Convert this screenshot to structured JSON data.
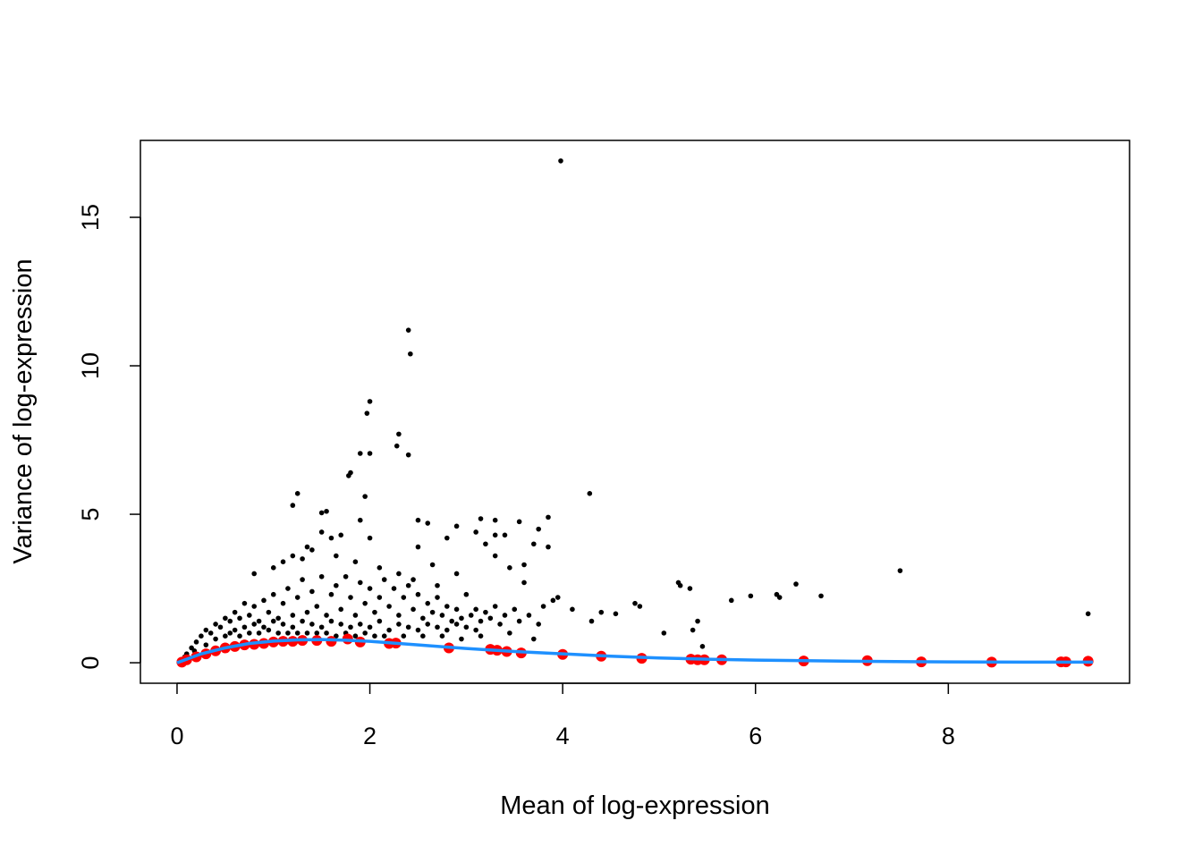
{
  "chart_data": {
    "type": "scatter",
    "title": "",
    "xlabel": "Mean of log-expression",
    "ylabel": "Variance of log-expression",
    "xlim": [
      -0.38,
      9.88
    ],
    "ylim": [
      -0.69,
      17.59
    ],
    "xticks": [
      0,
      2,
      4,
      6,
      8
    ],
    "yticks": [
      0,
      5,
      10,
      15
    ],
    "grid": false,
    "legend": "none",
    "colors": {
      "genes": "#000000",
      "spikes": "#ff0000",
      "trend": "#1e90ff"
    },
    "series": [
      {
        "role": "genes",
        "points": [
          [
            3.98,
            16.9
          ],
          [
            2.4,
            11.2
          ],
          [
            2.42,
            10.4
          ],
          [
            2.0,
            8.8
          ],
          [
            1.97,
            8.4
          ],
          [
            2.3,
            7.7
          ],
          [
            2.28,
            7.3
          ],
          [
            2.4,
            7.0
          ],
          [
            1.9,
            7.05
          ],
          [
            2.0,
            7.05
          ],
          [
            1.8,
            6.4
          ],
          [
            1.78,
            6.3
          ],
          [
            1.25,
            5.7
          ],
          [
            1.95,
            5.6
          ],
          [
            1.2,
            5.3
          ],
          [
            1.55,
            5.1
          ],
          [
            1.5,
            5.05
          ],
          [
            1.9,
            4.8
          ],
          [
            4.28,
            5.7
          ],
          [
            2.5,
            4.8
          ],
          [
            2.6,
            4.7
          ],
          [
            3.15,
            4.85
          ],
          [
            3.3,
            4.8
          ],
          [
            3.55,
            4.75
          ],
          [
            3.85,
            4.9
          ],
          [
            3.75,
            4.5
          ],
          [
            3.1,
            4.4
          ],
          [
            3.3,
            4.3
          ],
          [
            3.4,
            4.3
          ],
          [
            2.5,
            3.9
          ],
          [
            2.65,
            3.3
          ],
          [
            4.75,
            2.0
          ],
          [
            4.8,
            1.9
          ],
          [
            5.2,
            2.7
          ],
          [
            5.22,
            2.6
          ],
          [
            5.32,
            2.5
          ],
          [
            5.75,
            2.1
          ],
          [
            5.95,
            2.25
          ],
          [
            6.22,
            2.3
          ],
          [
            6.25,
            2.2
          ],
          [
            6.42,
            2.65
          ],
          [
            6.68,
            2.25
          ],
          [
            7.5,
            3.1
          ],
          [
            9.45,
            1.65
          ],
          [
            5.4,
            1.4
          ],
          [
            5.35,
            1.1
          ],
          [
            5.45,
            0.55
          ],
          [
            5.05,
            1.0
          ],
          [
            4.4,
            1.7
          ],
          [
            4.55,
            1.65
          ],
          [
            4.3,
            1.4
          ],
          [
            4.1,
            1.8
          ],
          [
            3.95,
            2.2
          ],
          [
            3.6,
            2.7
          ],
          [
            3.6,
            3.3
          ],
          [
            3.7,
            4.0
          ],
          [
            3.85,
            3.9
          ],
          [
            3.45,
            3.2
          ],
          [
            3.3,
            3.6
          ],
          [
            3.2,
            4.0
          ],
          [
            2.9,
            4.6
          ],
          [
            2.8,
            4.2
          ],
          [
            2.9,
            3.0
          ],
          [
            2.7,
            2.6
          ],
          [
            2.0,
            4.2
          ],
          [
            1.5,
            4.4
          ],
          [
            1.6,
            4.2
          ],
          [
            1.7,
            4.3
          ],
          [
            1.4,
            3.8
          ],
          [
            1.3,
            3.5
          ],
          [
            1.2,
            3.6
          ],
          [
            1.0,
            3.2
          ],
          [
            0.8,
            3.0
          ],
          [
            1.1,
            3.4
          ],
          [
            1.35,
            3.9
          ],
          [
            1.65,
            3.6
          ],
          [
            1.85,
            3.4
          ],
          [
            2.1,
            3.2
          ],
          [
            2.3,
            3.0
          ],
          [
            2.45,
            2.8
          ],
          [
            0.1,
            0.3
          ],
          [
            0.15,
            0.5
          ],
          [
            0.2,
            0.7
          ],
          [
            0.25,
            0.9
          ],
          [
            0.3,
            1.1
          ],
          [
            0.35,
            1.0
          ],
          [
            0.4,
            1.3
          ],
          [
            0.45,
            1.2
          ],
          [
            0.5,
            1.5
          ],
          [
            0.55,
            1.4
          ],
          [
            0.6,
            1.7
          ],
          [
            0.65,
            1.5
          ],
          [
            0.7,
            2.0
          ],
          [
            0.75,
            1.6
          ],
          [
            0.8,
            1.9
          ],
          [
            0.85,
            1.4
          ],
          [
            0.9,
            2.1
          ],
          [
            0.95,
            1.7
          ],
          [
            1.0,
            2.3
          ],
          [
            1.05,
            1.5
          ],
          [
            1.1,
            2.0
          ],
          [
            1.15,
            2.5
          ],
          [
            1.2,
            1.6
          ],
          [
            1.25,
            2.2
          ],
          [
            1.3,
            2.8
          ],
          [
            1.35,
            1.7
          ],
          [
            1.4,
            2.4
          ],
          [
            1.45,
            1.9
          ],
          [
            1.5,
            2.9
          ],
          [
            1.55,
            1.6
          ],
          [
            1.6,
            2.3
          ],
          [
            1.65,
            2.6
          ],
          [
            1.7,
            1.8
          ],
          [
            1.75,
            2.9
          ],
          [
            1.8,
            2.2
          ],
          [
            1.85,
            1.6
          ],
          [
            1.9,
            2.7
          ],
          [
            1.95,
            2.0
          ],
          [
            2.0,
            2.5
          ],
          [
            2.05,
            1.7
          ],
          [
            2.1,
            2.2
          ],
          [
            2.15,
            2.8
          ],
          [
            2.2,
            1.9
          ],
          [
            2.25,
            2.5
          ],
          [
            2.3,
            1.6
          ],
          [
            2.35,
            2.2
          ],
          [
            2.4,
            2.6
          ],
          [
            2.45,
            1.8
          ],
          [
            2.5,
            2.3
          ],
          [
            2.55,
            1.5
          ],
          [
            2.6,
            2.0
          ],
          [
            2.65,
            1.7
          ],
          [
            2.7,
            2.2
          ],
          [
            2.75,
            1.6
          ],
          [
            2.8,
            1.9
          ],
          [
            2.85,
            1.4
          ],
          [
            2.9,
            1.8
          ],
          [
            2.95,
            1.5
          ],
          [
            3.0,
            2.3
          ],
          [
            3.05,
            1.6
          ],
          [
            3.1,
            1.8
          ],
          [
            3.15,
            1.4
          ],
          [
            3.2,
            1.7
          ],
          [
            3.25,
            1.5
          ],
          [
            3.3,
            1.9
          ],
          [
            3.35,
            1.3
          ],
          [
            3.4,
            1.6
          ],
          [
            3.5,
            1.8
          ],
          [
            3.55,
            1.4
          ],
          [
            3.65,
            1.6
          ],
          [
            3.75,
            1.3
          ],
          [
            3.8,
            1.9
          ],
          [
            3.9,
            2.1
          ],
          [
            0.5,
            0.9
          ],
          [
            0.6,
            1.1
          ],
          [
            0.7,
            1.2
          ],
          [
            0.8,
            1.3
          ],
          [
            0.9,
            1.2
          ],
          [
            1.0,
            1.4
          ],
          [
            1.1,
            1.3
          ],
          [
            1.2,
            1.2
          ],
          [
            1.3,
            1.4
          ],
          [
            1.4,
            1.3
          ],
          [
            1.5,
            1.2
          ],
          [
            1.6,
            1.4
          ],
          [
            1.7,
            1.3
          ],
          [
            1.8,
            1.2
          ],
          [
            1.9,
            1.3
          ],
          [
            2.0,
            1.2
          ],
          [
            2.1,
            1.4
          ],
          [
            2.2,
            1.1
          ],
          [
            2.3,
            1.3
          ],
          [
            2.4,
            1.2
          ],
          [
            2.5,
            1.1
          ],
          [
            2.6,
            1.3
          ],
          [
            2.7,
            1.2
          ],
          [
            2.8,
            1.1
          ],
          [
            2.9,
            1.3
          ],
          [
            3.0,
            1.2
          ],
          [
            3.1,
            1.1
          ],
          [
            0.3,
            0.6
          ],
          [
            0.4,
            0.8
          ],
          [
            0.55,
            1.0
          ],
          [
            0.65,
            0.9
          ],
          [
            0.75,
            1.0
          ],
          [
            0.85,
            1.0
          ],
          [
            0.95,
            1.1
          ],
          [
            1.05,
            1.0
          ],
          [
            1.15,
            1.0
          ],
          [
            1.25,
            1.0
          ],
          [
            1.35,
            1.0
          ],
          [
            1.45,
            1.0
          ],
          [
            1.55,
            1.0
          ],
          [
            1.65,
            0.9
          ],
          [
            1.75,
            1.0
          ],
          [
            1.85,
            0.9
          ],
          [
            1.95,
            1.0
          ],
          [
            2.05,
            0.9
          ],
          [
            2.15,
            0.9
          ],
          [
            2.35,
            0.9
          ],
          [
            2.55,
            0.9
          ],
          [
            2.75,
            0.9
          ],
          [
            2.95,
            0.8
          ],
          [
            3.15,
            0.9
          ],
          [
            3.45,
            1.0
          ],
          [
            3.7,
            0.8
          ],
          [
            0.05,
            0.1
          ],
          [
            0.08,
            0.2
          ],
          [
            0.12,
            0.15
          ],
          [
            0.18,
            0.4
          ]
        ]
      },
      {
        "role": "spike-ins",
        "points": [
          [
            0.05,
            0.02
          ],
          [
            0.1,
            0.1
          ],
          [
            0.2,
            0.2
          ],
          [
            0.3,
            0.3
          ],
          [
            0.4,
            0.4
          ],
          [
            0.5,
            0.5
          ],
          [
            0.6,
            0.55
          ],
          [
            0.7,
            0.6
          ],
          [
            0.8,
            0.62
          ],
          [
            0.9,
            0.65
          ],
          [
            1.0,
            0.7
          ],
          [
            1.1,
            0.72
          ],
          [
            1.2,
            0.72
          ],
          [
            1.3,
            0.75
          ],
          [
            1.45,
            0.75
          ],
          [
            1.6,
            0.72
          ],
          [
            1.77,
            0.8
          ],
          [
            1.9,
            0.7
          ],
          [
            2.2,
            0.65
          ],
          [
            2.27,
            0.66
          ],
          [
            2.82,
            0.5
          ],
          [
            3.25,
            0.45
          ],
          [
            3.32,
            0.42
          ],
          [
            3.42,
            0.38
          ],
          [
            3.57,
            0.33
          ],
          [
            4.0,
            0.28
          ],
          [
            4.4,
            0.22
          ],
          [
            4.82,
            0.15
          ],
          [
            5.33,
            0.12
          ],
          [
            5.4,
            0.1
          ],
          [
            5.47,
            0.1
          ],
          [
            5.65,
            0.1
          ],
          [
            6.5,
            0.06
          ],
          [
            7.16,
            0.07
          ],
          [
            7.72,
            0.03
          ],
          [
            8.45,
            0.02
          ],
          [
            9.17,
            0.03
          ],
          [
            9.22,
            0.03
          ],
          [
            9.45,
            0.05
          ]
        ]
      },
      {
        "role": "trend",
        "type": "line",
        "points": [
          [
            0,
            0
          ],
          [
            0.25,
            0.3
          ],
          [
            0.5,
            0.5
          ],
          [
            0.75,
            0.65
          ],
          [
            1,
            0.73
          ],
          [
            1.25,
            0.77
          ],
          [
            1.5,
            0.78
          ],
          [
            1.75,
            0.76
          ],
          [
            2,
            0.72
          ],
          [
            2.5,
            0.6
          ],
          [
            3,
            0.48
          ],
          [
            3.5,
            0.38
          ],
          [
            4,
            0.3
          ],
          [
            4.5,
            0.22
          ],
          [
            5,
            0.16
          ],
          [
            5.5,
            0.12
          ],
          [
            6,
            0.09
          ],
          [
            6.5,
            0.07
          ],
          [
            7,
            0.05
          ],
          [
            8,
            0.03
          ],
          [
            9,
            0.02
          ],
          [
            9.5,
            0.02
          ]
        ]
      }
    ]
  }
}
